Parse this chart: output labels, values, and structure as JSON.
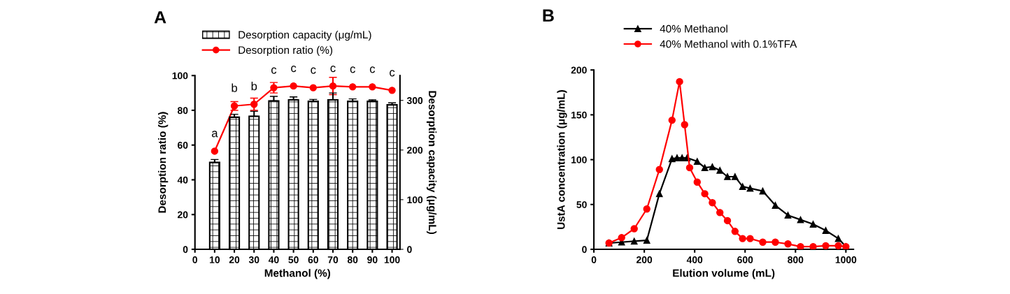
{
  "chart_data": [
    {
      "type": "bar",
      "title": "A",
      "xlabel": "Methanol (%)",
      "ylabel": "Desorption ratio (%)",
      "y2label": "Desorption capacity (μg/mL)",
      "x": [
        10,
        20,
        30,
        40,
        50,
        60,
        70,
        80,
        90,
        100
      ],
      "series": [
        {
          "name": "Desorption capacity (μg/mL)",
          "type": "bar",
          "axis": "y2",
          "color": "#000000",
          "values": [
            175,
            266,
            268,
            299,
            301,
            298,
            301,
            298,
            298,
            291
          ],
          "errors": [
            6,
            6,
            10,
            9,
            6,
            4,
            14,
            5,
            3,
            4
          ]
        },
        {
          "name": "Desorption ratio (%)",
          "type": "line",
          "color": "#ff0000",
          "marker": "circle",
          "values": [
            56.5,
            82.5,
            83.5,
            93,
            94,
            93,
            94,
            93.5,
            93.5,
            91.5
          ],
          "errors": [
            null,
            2.5,
            3.5,
            3,
            null,
            null,
            5,
            null,
            null,
            null
          ]
        }
      ],
      "xlim": [
        0,
        104
      ],
      "xticks": [
        0,
        10,
        20,
        30,
        40,
        50,
        60,
        70,
        80,
        90,
        100
      ],
      "ylim": [
        0,
        100
      ],
      "yticks": [
        0,
        20,
        40,
        60,
        80,
        100
      ],
      "y2lim": [
        0,
        350
      ],
      "y2ticks": [
        0,
        100,
        200,
        300
      ],
      "legend": "top",
      "grid": false,
      "annotations": [
        {
          "text": "a",
          "x": 10,
          "y": 56.5
        },
        {
          "text": "b",
          "x": 20,
          "y": 82.5
        },
        {
          "text": "b",
          "x": 30,
          "y": 83.5
        },
        {
          "text": "c",
          "x": 40,
          "y": 93
        },
        {
          "text": "c",
          "x": 50,
          "y": 94
        },
        {
          "text": "c",
          "x": 60,
          "y": 93
        },
        {
          "text": "c",
          "x": 70,
          "y": 94
        },
        {
          "text": "c",
          "x": 80,
          "y": 93.5
        },
        {
          "text": "c",
          "x": 90,
          "y": 93.5
        },
        {
          "text": "c",
          "x": 100,
          "y": 91.5
        }
      ]
    },
    {
      "type": "line",
      "title": "B",
      "xlabel": "Elution volume (mL)",
      "ylabel": "UstA concentration (μg/mL)",
      "series": [
        {
          "name": "40% Methanol",
          "color": "#000000",
          "marker": "triangle",
          "x": [
            60,
            110,
            160,
            210,
            260,
            310,
            330,
            350,
            370,
            410,
            440,
            470,
            500,
            530,
            560,
            590,
            620,
            670,
            720,
            770,
            820,
            870,
            920,
            970,
            1000
          ],
          "values": [
            7,
            8,
            9,
            10,
            62,
            101,
            102,
            102,
            102,
            98,
            91,
            92,
            88,
            81,
            81,
            70,
            68,
            65,
            49,
            38,
            33,
            28,
            21,
            12,
            3
          ]
        },
        {
          "name": "40% Methanol with 0.1%TFA",
          "color": "#ff0000",
          "marker": "circle",
          "x": [
            60,
            110,
            160,
            210,
            260,
            310,
            340,
            360,
            380,
            410,
            440,
            470,
            500,
            530,
            560,
            590,
            620,
            670,
            720,
            770,
            820,
            870,
            920,
            970,
            1000
          ],
          "values": [
            7,
            13,
            23,
            45,
            89,
            144,
            187,
            139,
            91,
            75,
            62,
            52,
            41,
            32,
            20,
            12,
            12,
            8,
            8,
            6,
            3,
            3,
            4,
            4,
            3
          ]
        }
      ],
      "xlim": [
        0,
        1030
      ],
      "xticks": [
        0,
        200,
        400,
        600,
        800,
        1000
      ],
      "ylim": [
        0,
        200
      ],
      "yticks": [
        0,
        50,
        100,
        150,
        200
      ],
      "legend": "top",
      "grid": false
    }
  ]
}
